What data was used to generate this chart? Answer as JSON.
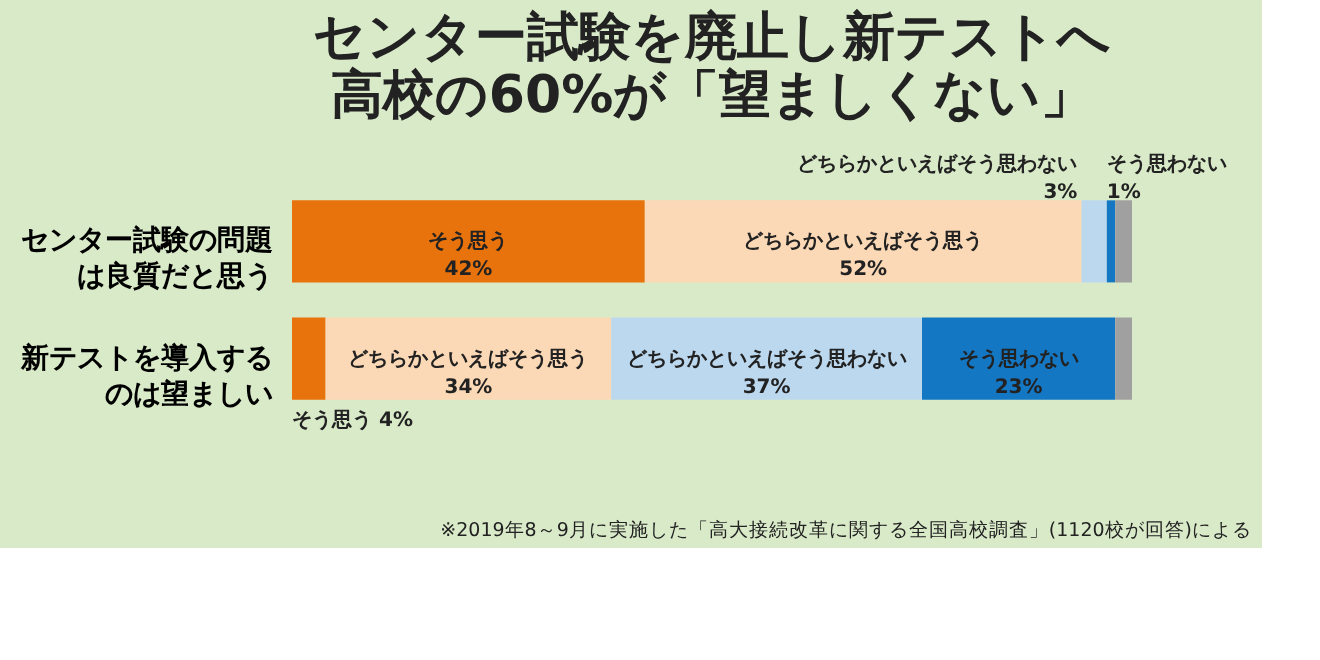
{
  "chart_data": {
    "type": "bar",
    "orientation": "horizontal",
    "stacked": true,
    "title": "センター試験を廃止し新テストへ",
    "subtitle": "高校の60%が「望ましくない」",
    "categories": [
      "センター試験の問題は良質だと思う",
      "新テストを導入するのは望ましい"
    ],
    "series": [
      {
        "name": "そう思う",
        "color": "#e8720c",
        "values": [
          42,
          4
        ],
        "value_labels": [
          "42%",
          "4%"
        ]
      },
      {
        "name": "どちらかといえばそう思う",
        "color": "#fcd9b6",
        "values": [
          52,
          34
        ],
        "value_labels": [
          "52%",
          "34%"
        ]
      },
      {
        "name": "どちらかといえばそう思わない",
        "color": "#bcd8ef",
        "values": [
          3,
          37
        ],
        "value_labels": [
          "3%",
          "37%"
        ]
      },
      {
        "name": "そう思わない",
        "color": "#1477c4",
        "values": [
          1,
          23
        ],
        "value_labels": [
          "1%",
          "23%"
        ]
      },
      {
        "color": "#a0a0a0",
        "values": [
          2,
          2
        ],
        "value_labels": [
          null,
          null
        ]
      }
    ],
    "annotations": [
      "※2019年8～9月に実施した「高大接続改革に関する全国高校調査」(1120校が回答)による"
    ],
    "legend": false,
    "grid": false,
    "tick_labels": "y"
  }
}
